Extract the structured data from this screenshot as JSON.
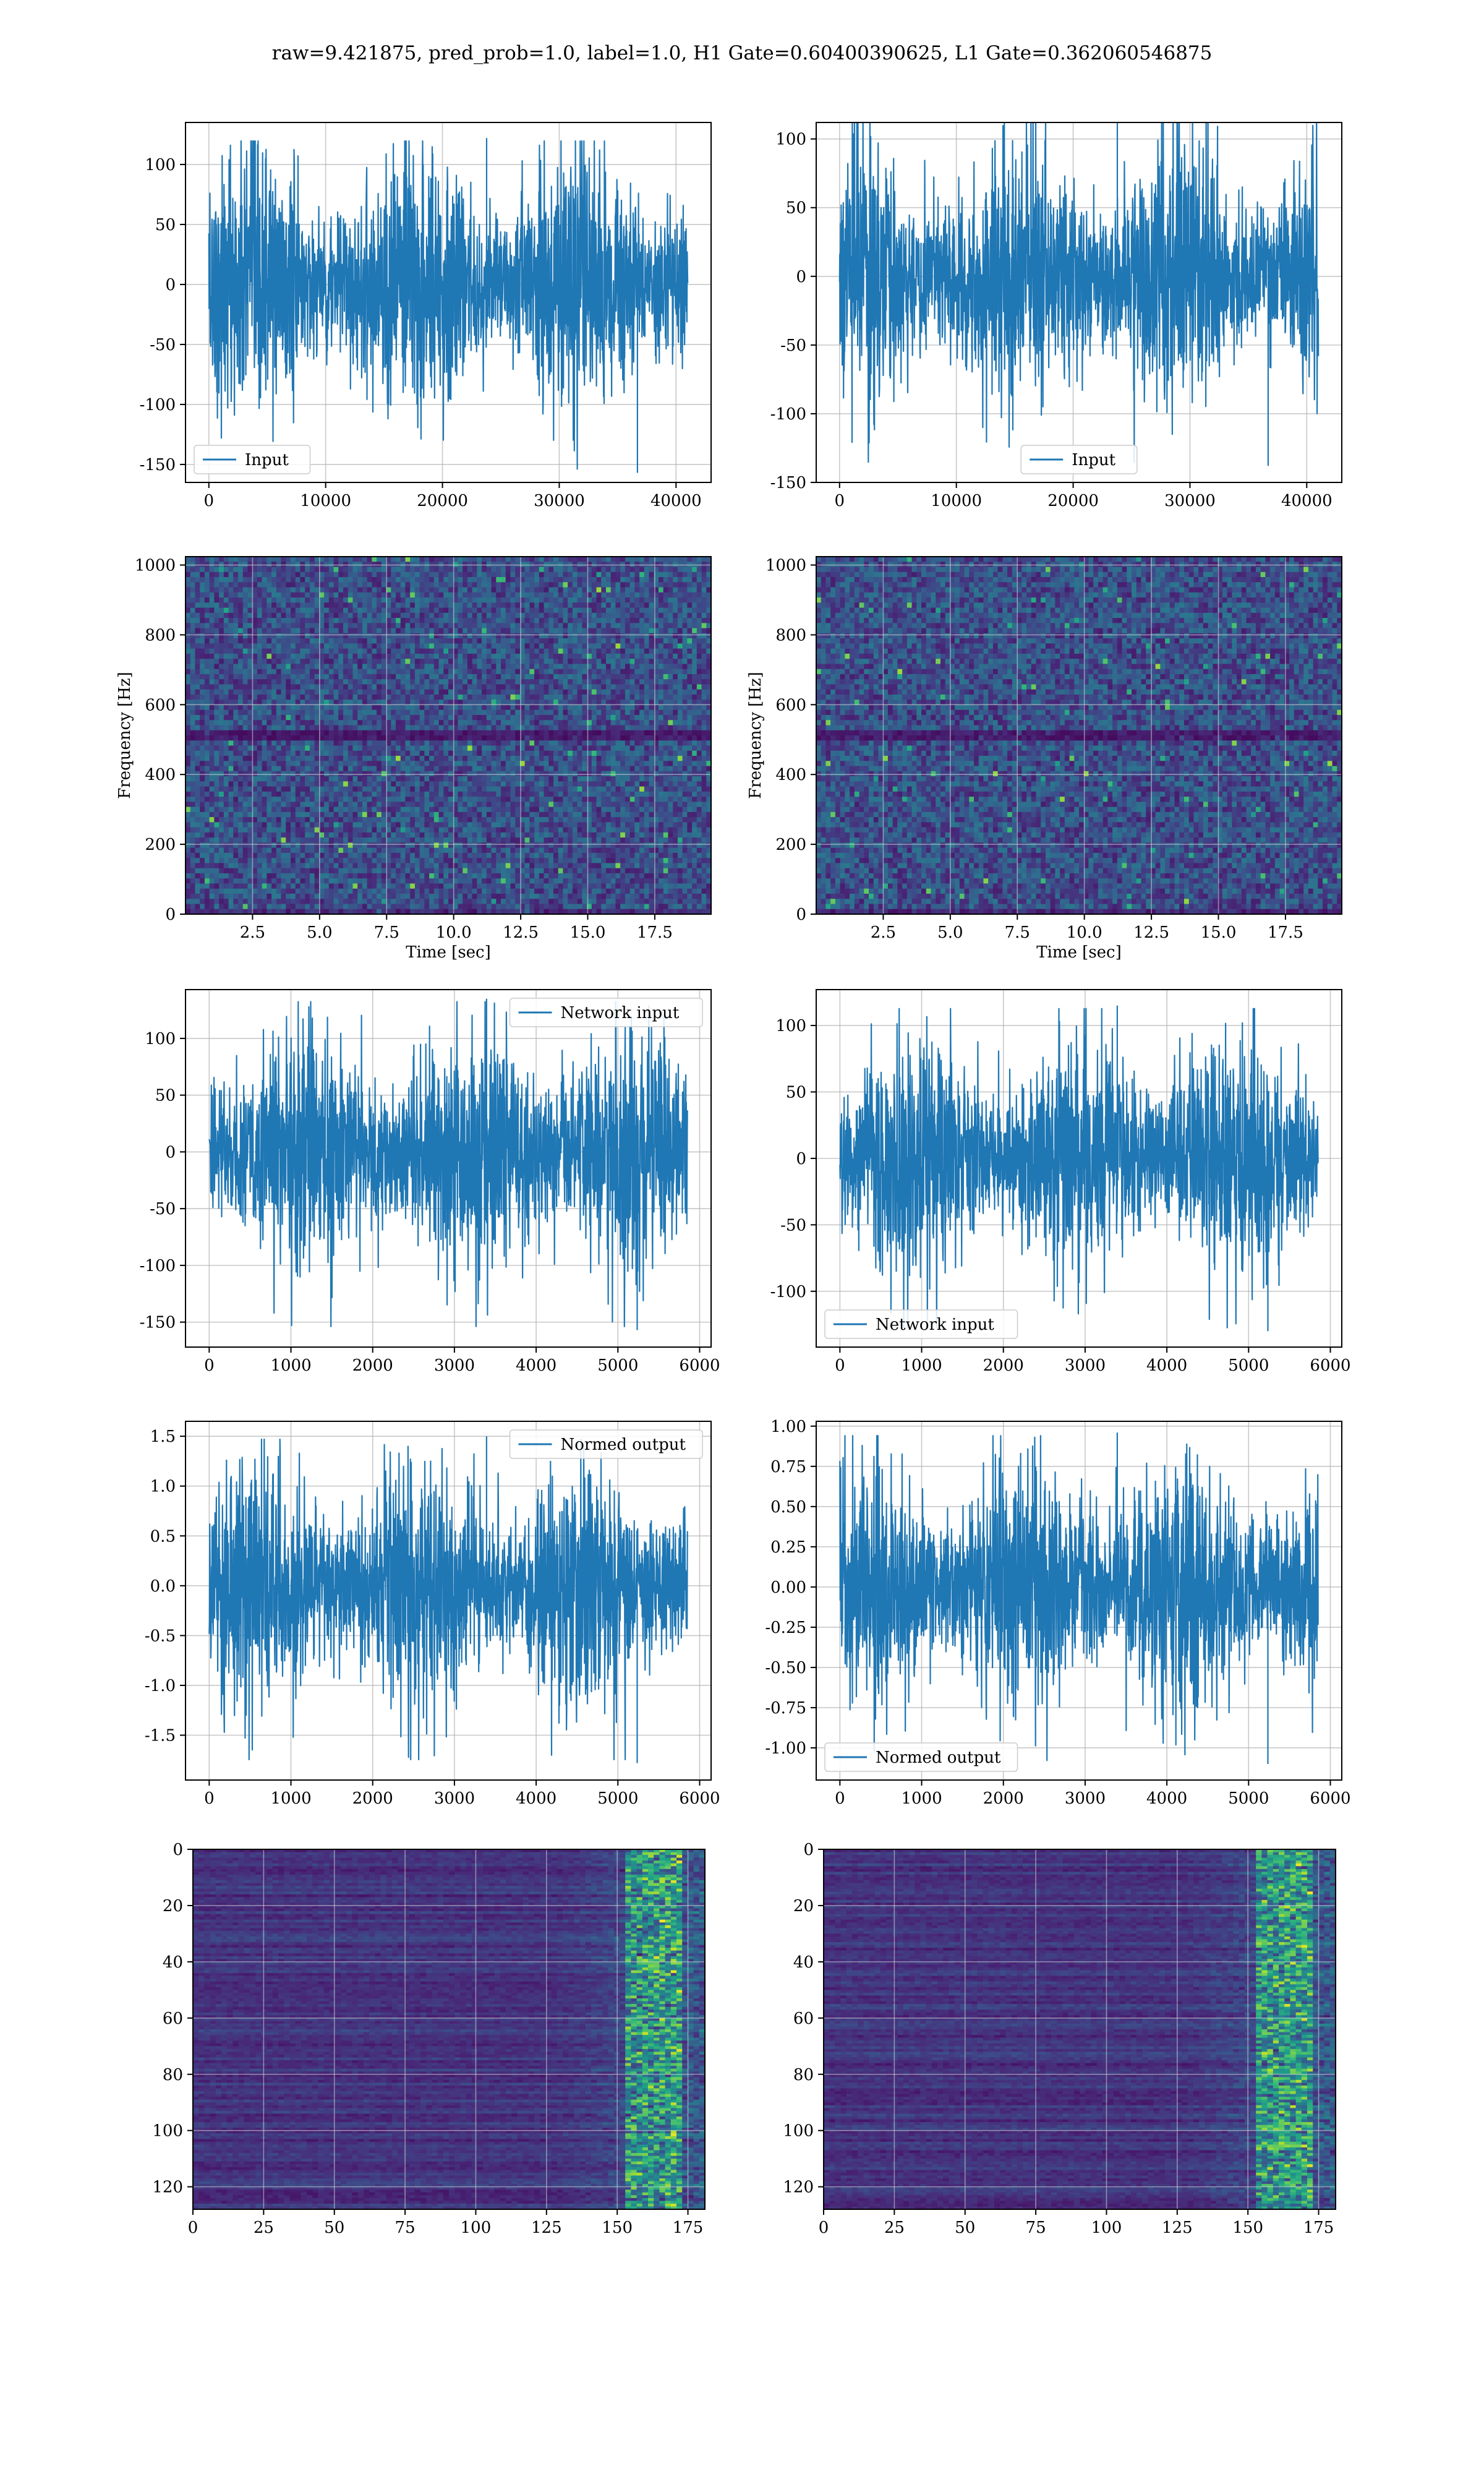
{
  "figure": {
    "title": "raw=9.421875, pred_prob=1.0, label=1.0, H1 Gate=0.60400390625, L1 Gate=0.362060546875"
  },
  "colors": {
    "signal": "#1f77b4",
    "grid": "#b0b0b0",
    "spine": "#000000",
    "viridis_low": "#440154",
    "viridis_high": "#fde725"
  },
  "chart_data": [
    {
      "id": "h1-input",
      "type": "line",
      "row": 1,
      "col": 1,
      "series": [
        {
          "name": "Input",
          "samples": 41000,
          "ylim_data": [
            -157,
            122
          ]
        }
      ],
      "x_range": [
        0,
        41000
      ],
      "xlim": [
        -2000,
        43000
      ],
      "ylim": [
        -165,
        135
      ],
      "x_ticks": [
        0,
        10000,
        20000,
        30000,
        40000
      ],
      "y_ticks": [
        -150,
        -100,
        -50,
        0,
        50,
        100
      ],
      "legend": "lower-left",
      "grid": true,
      "xlabel": "",
      "ylabel": ""
    },
    {
      "id": "l1-input",
      "type": "line",
      "row": 1,
      "col": 2,
      "series": [
        {
          "name": "Input",
          "samples": 41000,
          "ylim_data": [
            -138,
            123
          ]
        }
      ],
      "x_range": [
        0,
        41000
      ],
      "xlim": [
        -2000,
        43000
      ],
      "ylim": [
        -150,
        112
      ],
      "x_ticks": [
        0,
        10000,
        20000,
        30000,
        40000
      ],
      "y_ticks": [
        -150,
        -100,
        -50,
        0,
        50,
        100
      ],
      "legend": "lower-center",
      "grid": true,
      "xlabel": "",
      "ylabel": ""
    },
    {
      "id": "h1-spectrogram",
      "type": "heatmap",
      "row": 2,
      "col": 1,
      "xlim": [
        0,
        19.6
      ],
      "ylim": [
        0,
        1024
      ],
      "x_ticks": [
        2.5,
        5.0,
        7.5,
        10.0,
        12.5,
        15.0,
        17.5
      ],
      "y_ticks": [
        0,
        200,
        400,
        600,
        800,
        1000
      ],
      "xlabel": "Time [sec]",
      "ylabel": "Frequency [Hz]",
      "grid": true,
      "colormap": "viridis"
    },
    {
      "id": "l1-spectrogram",
      "type": "heatmap",
      "row": 2,
      "col": 2,
      "xlim": [
        0,
        19.6
      ],
      "ylim": [
        0,
        1024
      ],
      "x_ticks": [
        2.5,
        5.0,
        7.5,
        10.0,
        12.5,
        15.0,
        17.5
      ],
      "y_ticks": [
        0,
        200,
        400,
        600,
        800,
        1000
      ],
      "xlabel": "Time [sec]",
      "ylabel": "Frequency [Hz]",
      "grid": true,
      "colormap": "viridis"
    },
    {
      "id": "h1-network-input",
      "type": "line",
      "row": 3,
      "col": 1,
      "series": [
        {
          "name": "Network input",
          "samples": 5850,
          "ylim_data": [
            -157,
            135
          ]
        }
      ],
      "x_range": [
        0,
        5850
      ],
      "xlim": [
        -290,
        6140
      ],
      "ylim": [
        -172,
        143
      ],
      "x_ticks": [
        0,
        1000,
        2000,
        3000,
        4000,
        5000,
        6000
      ],
      "y_ticks": [
        -150,
        -100,
        -50,
        0,
        50,
        100
      ],
      "legend": "upper-right",
      "grid": true,
      "xlabel": "",
      "ylabel": ""
    },
    {
      "id": "l1-network-input",
      "type": "line",
      "row": 3,
      "col": 2,
      "series": [
        {
          "name": "Network input",
          "samples": 5850,
          "ylim_data": [
            -130,
            115
          ]
        }
      ],
      "x_range": [
        0,
        5850
      ],
      "xlim": [
        -290,
        6140
      ],
      "ylim": [
        -142,
        127
      ],
      "x_ticks": [
        0,
        1000,
        2000,
        3000,
        4000,
        5000,
        6000
      ],
      "y_ticks": [
        -100,
        -50,
        0,
        50,
        100
      ],
      "legend": "lower-left",
      "grid": true,
      "xlabel": "",
      "ylabel": ""
    },
    {
      "id": "h1-normed-output",
      "type": "line",
      "row": 4,
      "col": 1,
      "series": [
        {
          "name": "Normed output",
          "samples": 5850,
          "ylim_data": [
            -1.78,
            1.5
          ]
        }
      ],
      "x_range": [
        0,
        5850
      ],
      "xlim": [
        -290,
        6140
      ],
      "ylim": [
        -1.95,
        1.65
      ],
      "x_ticks": [
        0,
        1000,
        2000,
        3000,
        4000,
        5000,
        6000
      ],
      "y_ticks": [
        -1.5,
        -1.0,
        -0.5,
        0.0,
        0.5,
        1.0,
        1.5
      ],
      "legend": "upper-right",
      "grid": true,
      "xlabel": "",
      "ylabel": ""
    },
    {
      "id": "l1-normed-output",
      "type": "line",
      "row": 4,
      "col": 2,
      "series": [
        {
          "name": "Normed output",
          "samples": 5850,
          "ylim_data": [
            -1.1,
            0.96
          ]
        }
      ],
      "x_range": [
        0,
        5850
      ],
      "xlim": [
        -290,
        6140
      ],
      "ylim": [
        -1.2,
        1.03
      ],
      "x_ticks": [
        0,
        1000,
        2000,
        3000,
        4000,
        5000,
        6000
      ],
      "y_ticks": [
        -1.0,
        -0.75,
        -0.5,
        -0.25,
        0.0,
        0.25,
        0.5,
        0.75,
        1.0
      ],
      "legend": "lower-left",
      "grid": true,
      "xlabel": "",
      "ylabel": ""
    },
    {
      "id": "h1-feature-map",
      "type": "heatmap",
      "row": 5,
      "col": 1,
      "xlim": [
        0,
        181
      ],
      "ylim": [
        128,
        0
      ],
      "x_ticks": [
        0,
        25,
        50,
        75,
        100,
        125,
        150,
        175
      ],
      "y_ticks": [
        0,
        20,
        40,
        60,
        80,
        100,
        120
      ],
      "grid": true,
      "colormap": "viridis",
      "xlabel": "",
      "ylabel": ""
    },
    {
      "id": "l1-feature-map",
      "type": "heatmap",
      "row": 5,
      "col": 2,
      "xlim": [
        0,
        181
      ],
      "ylim": [
        128,
        0
      ],
      "x_ticks": [
        0,
        25,
        50,
        75,
        100,
        125,
        150,
        175
      ],
      "y_ticks": [
        0,
        20,
        40,
        60,
        80,
        100,
        120
      ],
      "grid": true,
      "colormap": "viridis",
      "xlabel": "",
      "ylabel": ""
    }
  ]
}
